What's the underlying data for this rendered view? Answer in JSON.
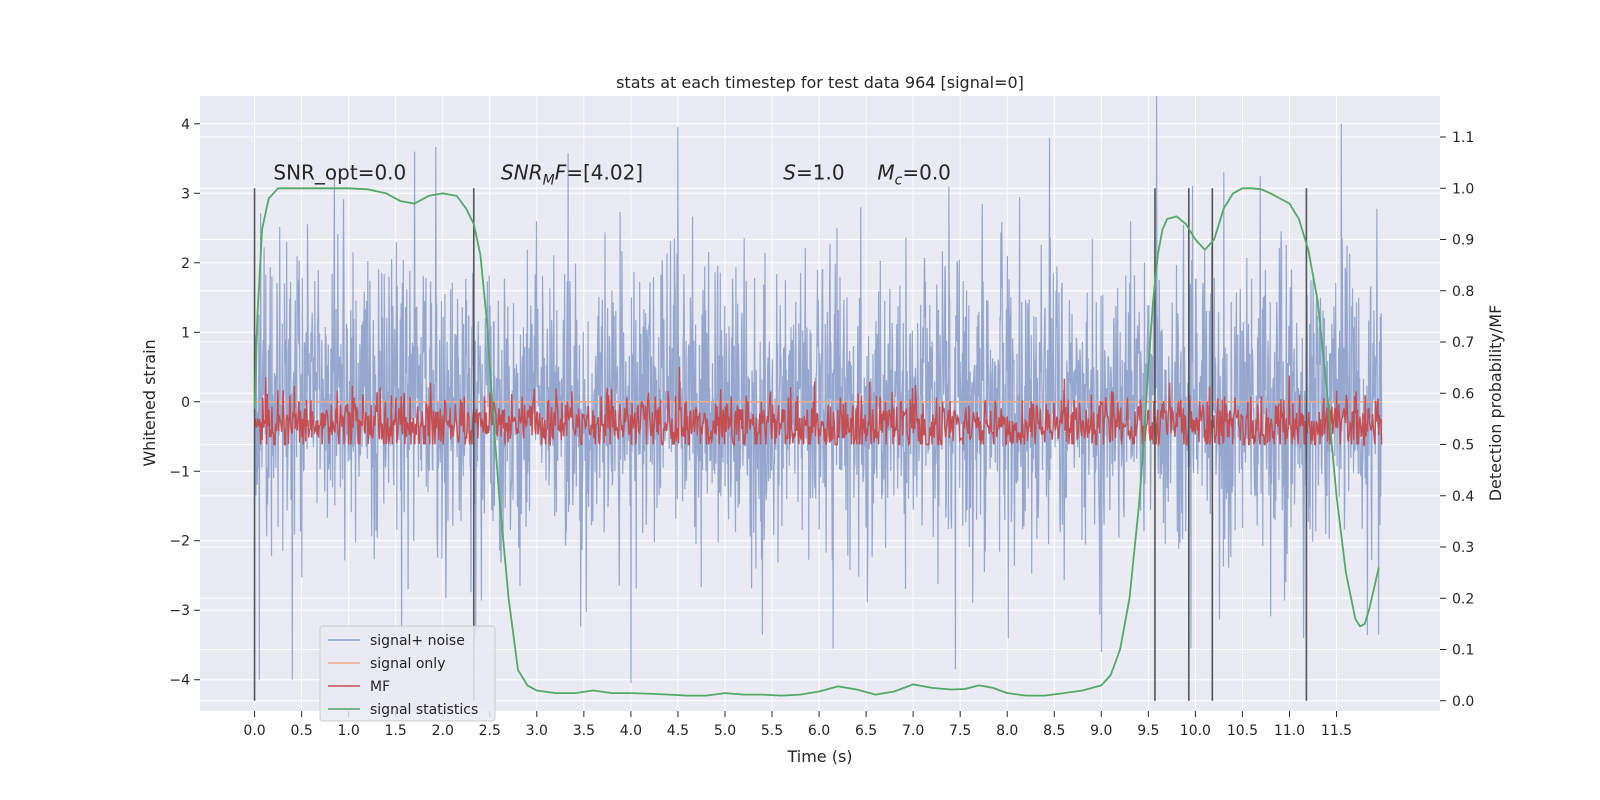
{
  "chart_data": {
    "type": "line",
    "title": "stats at each timestep for test data 964 [signal=0]",
    "xlabel": "Time (s)",
    "ylabel": "Whitened strain",
    "y2label": "Detection probability/MF",
    "xlim": [
      -0.58,
      12.6
    ],
    "ylim": [
      -4.45,
      4.4
    ],
    "y2lim": [
      -0.02,
      1.18
    ],
    "x_ticks": [
      0.0,
      0.5,
      1.0,
      1.5,
      2.0,
      2.5,
      3.0,
      3.5,
      4.0,
      4.5,
      5.0,
      5.5,
      6.0,
      6.5,
      7.0,
      7.5,
      8.0,
      8.5,
      9.0,
      9.5,
      10.0,
      10.5,
      11.0,
      11.5
    ],
    "x_tick_labels": [
      "0.0",
      "0.5",
      "1.0",
      "1.5",
      "2.0",
      "2.5",
      "3.0",
      "3.5",
      "4.0",
      "4.5",
      "5.0",
      "5.5",
      "6.0",
      "6.5",
      "7.0",
      "7.5",
      "8.0",
      "8.5",
      "9.0",
      "9.5",
      "10.0",
      "10.5",
      "11.0",
      "11.5"
    ],
    "y_ticks": [
      -4,
      -3,
      -2,
      -1,
      0,
      1,
      2,
      3,
      4
    ],
    "y_tick_labels": [
      "−4",
      "−3",
      "−2",
      "−1",
      "0",
      "1",
      "2",
      "3",
      "4"
    ],
    "y2_ticks": [
      0.0,
      0.1,
      0.2,
      0.3,
      0.4,
      0.5,
      0.6,
      0.7,
      0.8,
      0.9,
      1.0,
      1.1
    ],
    "y2_tick_labels": [
      "0.0",
      "0.1",
      "0.2",
      "0.3",
      "0.4",
      "0.5",
      "0.6",
      "0.7",
      "0.8",
      "0.9",
      "1.0",
      "1.1"
    ],
    "grid": true,
    "legend_placement": "lower-left",
    "series": [
      {
        "name": "signal+ noise",
        "axis": "left",
        "color": "#8da0cb",
        "kind": "noise-band",
        "x_range": [
          0.0,
          11.98
        ],
        "typical_range": [
          -2.3,
          2.3
        ],
        "extremes": [
          {
            "x": 0.05,
            "y": -4.0
          },
          {
            "x": 0.4,
            "y": -4.0
          },
          {
            "x": 0.85,
            "y": 3.3
          },
          {
            "x": 1.7,
            "y": 3.6
          },
          {
            "x": 2.35,
            "y": -3.4
          },
          {
            "x": 4.0,
            "y": -4.05
          },
          {
            "x": 4.5,
            "y": 3.95
          },
          {
            "x": 6.15,
            "y": -3.55
          },
          {
            "x": 7.45,
            "y": -3.85
          },
          {
            "x": 8.45,
            "y": 3.8
          },
          {
            "x": 9.0,
            "y": -3.6
          },
          {
            "x": 9.95,
            "y": -3.55
          },
          {
            "x": 10.3,
            "y": 3.3
          },
          {
            "x": 11.15,
            "y": -3.4
          },
          {
            "x": 11.55,
            "y": 4.0
          },
          {
            "x": 11.95,
            "y": -3.35
          }
        ]
      },
      {
        "name": "signal only",
        "axis": "left",
        "color": "#e8a98d",
        "x": [
          0.0,
          11.98
        ],
        "y": [
          0.0,
          0.0
        ]
      },
      {
        "name": "MF",
        "axis": "right",
        "color": "#c44e52",
        "kind": "noise-band",
        "x_range": [
          0.0,
          11.98
        ],
        "typical_range": [
          0.5,
          0.58
        ],
        "peak": 0.67
      },
      {
        "name": "signal statistics",
        "axis": "right",
        "color": "#55a868",
        "x": [
          0.0,
          0.03,
          0.08,
          0.15,
          0.25,
          0.4,
          0.6,
          0.8,
          1.0,
          1.2,
          1.4,
          1.55,
          1.7,
          1.85,
          2.0,
          2.15,
          2.25,
          2.33,
          2.4,
          2.47,
          2.53,
          2.6,
          2.7,
          2.8,
          2.9,
          3.0,
          3.2,
          3.4,
          3.6,
          3.8,
          4.0,
          4.3,
          4.6,
          4.8,
          5.0,
          5.2,
          5.4,
          5.6,
          5.8,
          6.0,
          6.2,
          6.4,
          6.6,
          6.8,
          7.0,
          7.2,
          7.4,
          7.55,
          7.7,
          7.85,
          8.0,
          8.2,
          8.4,
          8.6,
          8.8,
          9.0,
          9.1,
          9.2,
          9.3,
          9.4,
          9.45,
          9.5,
          9.55,
          9.6,
          9.65,
          9.7,
          9.8,
          9.9,
          10.0,
          10.1,
          10.2,
          10.3,
          10.4,
          10.5,
          10.6,
          10.7,
          10.8,
          10.9,
          11.0,
          11.1,
          11.2,
          11.3,
          11.4,
          11.5,
          11.6,
          11.7,
          11.75,
          11.8,
          11.85,
          11.9,
          11.95
        ],
        "y": [
          0.57,
          0.75,
          0.92,
          0.98,
          1.0,
          1.0,
          1.0,
          1.0,
          1.0,
          0.998,
          0.99,
          0.975,
          0.97,
          0.985,
          0.99,
          0.985,
          0.96,
          0.93,
          0.87,
          0.74,
          0.57,
          0.4,
          0.2,
          0.06,
          0.03,
          0.02,
          0.015,
          0.015,
          0.02,
          0.015,
          0.015,
          0.013,
          0.01,
          0.01,
          0.015,
          0.012,
          0.012,
          0.01,
          0.012,
          0.018,
          0.028,
          0.022,
          0.012,
          0.018,
          0.032,
          0.025,
          0.022,
          0.023,
          0.03,
          0.025,
          0.015,
          0.01,
          0.01,
          0.015,
          0.02,
          0.03,
          0.05,
          0.1,
          0.2,
          0.38,
          0.5,
          0.65,
          0.78,
          0.87,
          0.92,
          0.94,
          0.945,
          0.93,
          0.9,
          0.88,
          0.9,
          0.96,
          0.99,
          1.0,
          1.0,
          0.998,
          0.99,
          0.98,
          0.97,
          0.94,
          0.88,
          0.78,
          0.6,
          0.4,
          0.25,
          0.16,
          0.145,
          0.15,
          0.18,
          0.22,
          0.26
        ]
      }
    ],
    "vertical_lines": {
      "color": "#555555",
      "x": [
        0.0,
        2.33,
        9.57,
        9.93,
        10.18,
        11.18
      ],
      "y2_span": [
        0.0,
        1.0
      ]
    },
    "annotations": [
      {
        "id": "snr-opt",
        "text": "SNR_opt=0.0",
        "x": 0.2,
        "y": 3.2
      },
      {
        "id": "snr-mf",
        "text": "SNR_MF=[4.02]",
        "x": 2.62,
        "y": 3.2,
        "italic_part": "SNR",
        "subscript": "M",
        "suffix_italic": "F",
        "value": "=[4.02]"
      },
      {
        "id": "s-val",
        "text": "S=1.0",
        "x": 5.62,
        "y": 3.2,
        "italic_part": "S",
        "value": "=1.0"
      },
      {
        "id": "mc-val",
        "text": "Mc=0.0",
        "x": 6.62,
        "y": 3.2,
        "italic_part": "M",
        "subscript": "c",
        "value": "=0.0"
      }
    ]
  },
  "legend": {
    "items": [
      {
        "label": "signal+ noise",
        "color": "#8da0cb"
      },
      {
        "label": "signal only",
        "color": "#e8a98d"
      },
      {
        "label": "MF",
        "color": "#c44e52"
      },
      {
        "label": "signal statistics",
        "color": "#55a868"
      }
    ]
  },
  "colors": {
    "plot_background": "#eaeaf2",
    "grid": "#ffffff",
    "text": "#262626"
  }
}
